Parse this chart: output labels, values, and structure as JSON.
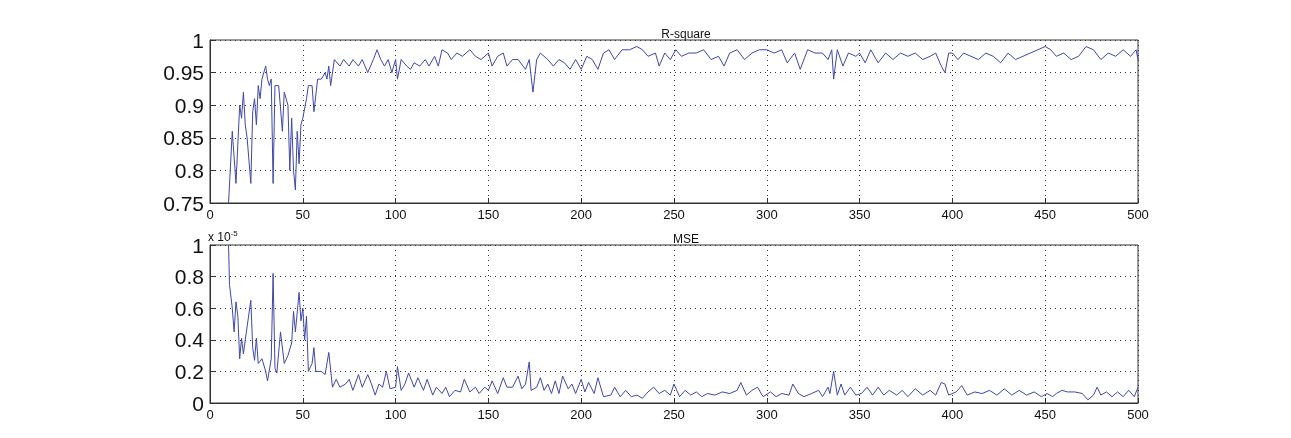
{
  "chart_data": [
    {
      "type": "line",
      "title": "R-square",
      "color": "#3f47a8",
      "marker": "none",
      "line_style": "solid",
      "grid": true,
      "xlim": [
        0,
        500
      ],
      "xticks": [
        0,
        50,
        100,
        150,
        200,
        250,
        300,
        350,
        400,
        450,
        500
      ],
      "ylim": [
        0.75,
        1
      ],
      "yticks": [
        0.75,
        0.8,
        0.85,
        0.9,
        0.95,
        1
      ],
      "x": [
        10,
        12,
        14,
        16,
        17,
        18,
        19,
        20,
        22,
        23,
        24,
        25,
        26,
        27,
        28,
        30,
        31,
        32,
        33,
        34,
        35,
        37,
        39,
        40,
        42,
        43,
        44,
        45,
        46,
        47,
        48,
        49,
        50,
        52,
        53,
        55,
        56,
        58,
        60,
        62,
        63,
        64,
        65,
        67,
        70,
        72,
        75,
        77,
        80,
        82,
        85,
        88,
        90,
        92,
        94,
        96,
        98,
        100,
        101,
        103,
        106,
        108,
        110,
        113,
        116,
        118,
        121,
        123,
        125,
        128,
        130,
        133,
        136,
        140,
        143,
        146,
        150,
        152,
        155,
        158,
        160,
        163,
        166,
        170,
        172,
        174,
        176,
        178,
        182,
        185,
        188,
        191,
        194,
        197,
        200,
        203,
        206,
        209,
        212,
        215,
        218,
        222,
        226,
        230,
        233,
        236,
        240,
        242,
        245,
        248,
        251,
        254,
        258,
        262,
        266,
        270,
        274,
        277,
        280,
        284,
        288,
        292,
        296,
        300,
        304,
        308,
        311,
        315,
        318,
        322,
        326,
        330,
        333,
        335,
        336,
        338,
        341,
        344,
        348,
        350,
        353,
        356,
        360,
        364,
        368,
        372,
        376,
        380,
        384,
        388,
        391,
        394,
        396,
        398,
        400,
        403,
        406,
        410,
        414,
        418,
        422,
        426,
        430,
        434,
        438,
        442,
        446,
        450,
        453,
        456,
        460,
        464,
        468,
        472,
        476,
        480,
        484,
        488,
        492,
        496,
        499,
        500
      ],
      "values": [
        0.75,
        0.86,
        0.78,
        0.9,
        0.88,
        0.92,
        0.87,
        0.85,
        0.78,
        0.89,
        0.91,
        0.87,
        0.93,
        0.91,
        0.94,
        0.96,
        0.94,
        0.93,
        0.94,
        0.78,
        0.93,
        0.93,
        0.86,
        0.92,
        0.9,
        0.8,
        0.88,
        0.8,
        0.77,
        0.86,
        0.81,
        0.87,
        0.88,
        0.91,
        0.93,
        0.93,
        0.89,
        0.94,
        0.94,
        0.95,
        0.94,
        0.96,
        0.93,
        0.97,
        0.96,
        0.97,
        0.96,
        0.97,
        0.96,
        0.97,
        0.95,
        0.97,
        0.985,
        0.97,
        0.96,
        0.97,
        0.95,
        0.97,
        0.94,
        0.97,
        0.96,
        0.955,
        0.965,
        0.96,
        0.97,
        0.96,
        0.975,
        0.96,
        0.985,
        0.98,
        0.97,
        0.98,
        0.975,
        0.985,
        0.975,
        0.97,
        0.98,
        0.96,
        0.975,
        0.98,
        0.96,
        0.97,
        0.97,
        0.955,
        0.97,
        0.92,
        0.97,
        0.98,
        0.97,
        0.96,
        0.97,
        0.965,
        0.955,
        0.97,
        0.955,
        0.975,
        0.97,
        0.955,
        0.98,
        0.985,
        0.97,
        0.985,
        0.985,
        0.99,
        0.985,
        0.975,
        0.98,
        0.96,
        0.98,
        0.97,
        0.985,
        0.975,
        0.98,
        0.98,
        0.985,
        0.97,
        0.975,
        0.96,
        0.98,
        0.985,
        0.97,
        0.98,
        0.985,
        0.985,
        0.98,
        0.985,
        0.965,
        0.98,
        0.955,
        0.985,
        0.98,
        0.98,
        0.97,
        0.985,
        0.94,
        0.985,
        0.96,
        0.98,
        0.975,
        0.98,
        0.965,
        0.985,
        0.965,
        0.98,
        0.97,
        0.98,
        0.975,
        0.98,
        0.97,
        0.975,
        0.98,
        0.96,
        0.95,
        0.98,
        0.98,
        0.97,
        0.98,
        0.975,
        0.97,
        0.98,
        0.975,
        0.965,
        0.98,
        0.97,
        0.975,
        0.98,
        0.985,
        0.99,
        0.985,
        0.975,
        0.98,
        0.97,
        0.975,
        0.99,
        0.985,
        0.97,
        0.98,
        0.975,
        0.985,
        0.975,
        0.985,
        0.97
      ]
    },
    {
      "type": "line",
      "title": "MSE",
      "annotations": [
        "x 10$^{-5}$"
      ],
      "color": "#3f47a8",
      "marker": "none",
      "line_style": "solid",
      "grid": true,
      "xlim": [
        0,
        500
      ],
      "xticks": [
        0,
        50,
        100,
        150,
        200,
        250,
        300,
        350,
        400,
        450,
        500
      ],
      "ylim": [
        0,
        1
      ],
      "yticks": [
        0,
        0.2,
        0.4,
        0.6,
        0.8,
        1
      ],
      "x": [
        10,
        10.5,
        12,
        13,
        14,
        15,
        16,
        17,
        18,
        19,
        22,
        23,
        24,
        25,
        26,
        28,
        30,
        31,
        33,
        34,
        35,
        36,
        38,
        40,
        42,
        44,
        45,
        46,
        48,
        49,
        50,
        51,
        52,
        53,
        55,
        56,
        57,
        60,
        62,
        64,
        66,
        68,
        70,
        73,
        75,
        77,
        80,
        82,
        85,
        87,
        89,
        91,
        93,
        95,
        97,
        100,
        101,
        103,
        105,
        107,
        110,
        112,
        115,
        117,
        120,
        122,
        125,
        127,
        129,
        132,
        135,
        137,
        140,
        143,
        145,
        148,
        150,
        152,
        155,
        158,
        160,
        163,
        166,
        168,
        170,
        172,
        173,
        176,
        178,
        180,
        182,
        184,
        186,
        188,
        190,
        193,
        195,
        197,
        200,
        202,
        204,
        207,
        209,
        212,
        216,
        218,
        221,
        224,
        227,
        230,
        233,
        236,
        239,
        242,
        245,
        248,
        250,
        253,
        256,
        259,
        262,
        265,
        268,
        272,
        276,
        280,
        284,
        286,
        289,
        292,
        295,
        298,
        302,
        305,
        308,
        312,
        314,
        317,
        320,
        324,
        328,
        330,
        333,
        334,
        336,
        338,
        340,
        342,
        345,
        348,
        351,
        354,
        357,
        360,
        363,
        366,
        370,
        373,
        376,
        380,
        384,
        388,
        391,
        394,
        396,
        398,
        402,
        405,
        408,
        412,
        416,
        420,
        424,
        428,
        432,
        436,
        440,
        444,
        448,
        451,
        454,
        456,
        459,
        462,
        466,
        470,
        473,
        476,
        478,
        480,
        483,
        486,
        489,
        492,
        495,
        498,
        500
      ],
      "values": [
        1,
        0.75,
        0.6,
        0.45,
        0.64,
        0.55,
        0.28,
        0.41,
        0.31,
        0.4,
        0.65,
        0.35,
        0.27,
        0.41,
        0.25,
        0.28,
        0.2,
        0.14,
        0.28,
        0.82,
        0.22,
        0.19,
        0.45,
        0.25,
        0.3,
        0.38,
        0.58,
        0.45,
        0.7,
        0.52,
        0.6,
        0.4,
        0.55,
        0.2,
        0.25,
        0.35,
        0.2,
        0.2,
        0.18,
        0.32,
        0.1,
        0.15,
        0.1,
        0.12,
        0.15,
        0.08,
        0.18,
        0.1,
        0.18,
        0.12,
        0.05,
        0.12,
        0.1,
        0.2,
        0.09,
        0.1,
        0.23,
        0.08,
        0.12,
        0.19,
        0.1,
        0.16,
        0.08,
        0.15,
        0.05,
        0.1,
        0.06,
        0.1,
        0.04,
        0.08,
        0.07,
        0.15,
        0.07,
        0.1,
        0.06,
        0.1,
        0.08,
        0.14,
        0.06,
        0.16,
        0.1,
        0.1,
        0.17,
        0.09,
        0.12,
        0.26,
        0.08,
        0.1,
        0.16,
        0.08,
        0.12,
        0.06,
        0.14,
        0.06,
        0.17,
        0.09,
        0.12,
        0.06,
        0.15,
        0.07,
        0.13,
        0.06,
        0.16,
        0.04,
        0.05,
        0.1,
        0.04,
        0.08,
        0.04,
        0.05,
        0.03,
        0.07,
        0.1,
        0.06,
        0.08,
        0.05,
        0.12,
        0.04,
        0.08,
        0.05,
        0.07,
        0.04,
        0.06,
        0.05,
        0.07,
        0.06,
        0.08,
        0.13,
        0.05,
        0.08,
        0.1,
        0.04,
        0.07,
        0.04,
        0.06,
        0.05,
        0.12,
        0.06,
        0.04,
        0.06,
        0.08,
        0.04,
        0.1,
        0.06,
        0.2,
        0.05,
        0.12,
        0.05,
        0.1,
        0.05,
        0.06,
        0.1,
        0.05,
        0.1,
        0.05,
        0.08,
        0.05,
        0.08,
        0.04,
        0.09,
        0.05,
        0.08,
        0.05,
        0.13,
        0.12,
        0.05,
        0.07,
        0.11,
        0.05,
        0.07,
        0.06,
        0.08,
        0.05,
        0.09,
        0.05,
        0.08,
        0.05,
        0.07,
        0.04,
        0.06,
        0.04,
        0.06,
        0.08,
        0.07,
        0.07,
        0.06,
        0.02,
        0.05,
        0.1,
        0.05,
        0.07,
        0.04,
        0.07,
        0.04,
        0.08,
        0.04,
        0.1
      ]
    }
  ]
}
